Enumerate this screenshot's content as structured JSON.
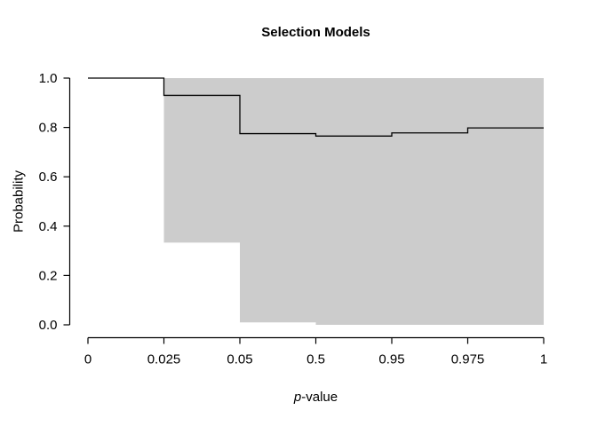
{
  "chart_data": {
    "type": "line",
    "subtype": "step-function-with-confidence-band",
    "title": "Selection Models",
    "xlabel": "p-value",
    "xlabel_italic": "p",
    "xlabel_rest": "-value",
    "ylabel": "Probability",
    "x_tick_labels": [
      "0",
      "0.025",
      "0.05",
      "0.5",
      "0.95",
      "0.975",
      "1"
    ],
    "x_tick_note": "ticks evenly spaced on screen despite non-linear p-value scale",
    "y_tick_labels": [
      "0.0",
      "0.2",
      "0.4",
      "0.6",
      "0.8",
      "1.0"
    ],
    "y_tick_values": [
      0.0,
      0.2,
      0.4,
      0.6,
      0.8,
      1.0
    ],
    "ylim": [
      0,
      1
    ],
    "grid": false,
    "legend": "none",
    "background": "#ffffff",
    "series": [
      {
        "name": "selection-model-estimate",
        "style": "step",
        "color": "#000000",
        "segments": [
          {
            "x_from": "0",
            "x_to": "0.025",
            "probability": 1.0
          },
          {
            "x_from": "0.025",
            "x_to": "0.05",
            "probability": 0.93
          },
          {
            "x_from": "0.05",
            "x_to": "0.5",
            "probability": 0.775
          },
          {
            "x_from": "0.5",
            "x_to": "0.95",
            "probability": 0.765
          },
          {
            "x_from": "0.95",
            "x_to": "0.975",
            "probability": 0.778
          },
          {
            "x_from": "0.975",
            "x_to": "1",
            "probability": 0.798
          }
        ]
      }
    ],
    "confidence_band": {
      "color": "#cccccc",
      "segments": [
        {
          "x_from": "0.025",
          "x_to": "0.05",
          "lower": 0.333,
          "upper": 1.0
        },
        {
          "x_from": "0.05",
          "x_to": "0.5",
          "lower": 0.01,
          "upper": 1.0
        },
        {
          "x_from": "0.5",
          "x_to": "1",
          "lower": 0.0,
          "upper": 1.0
        }
      ]
    }
  }
}
